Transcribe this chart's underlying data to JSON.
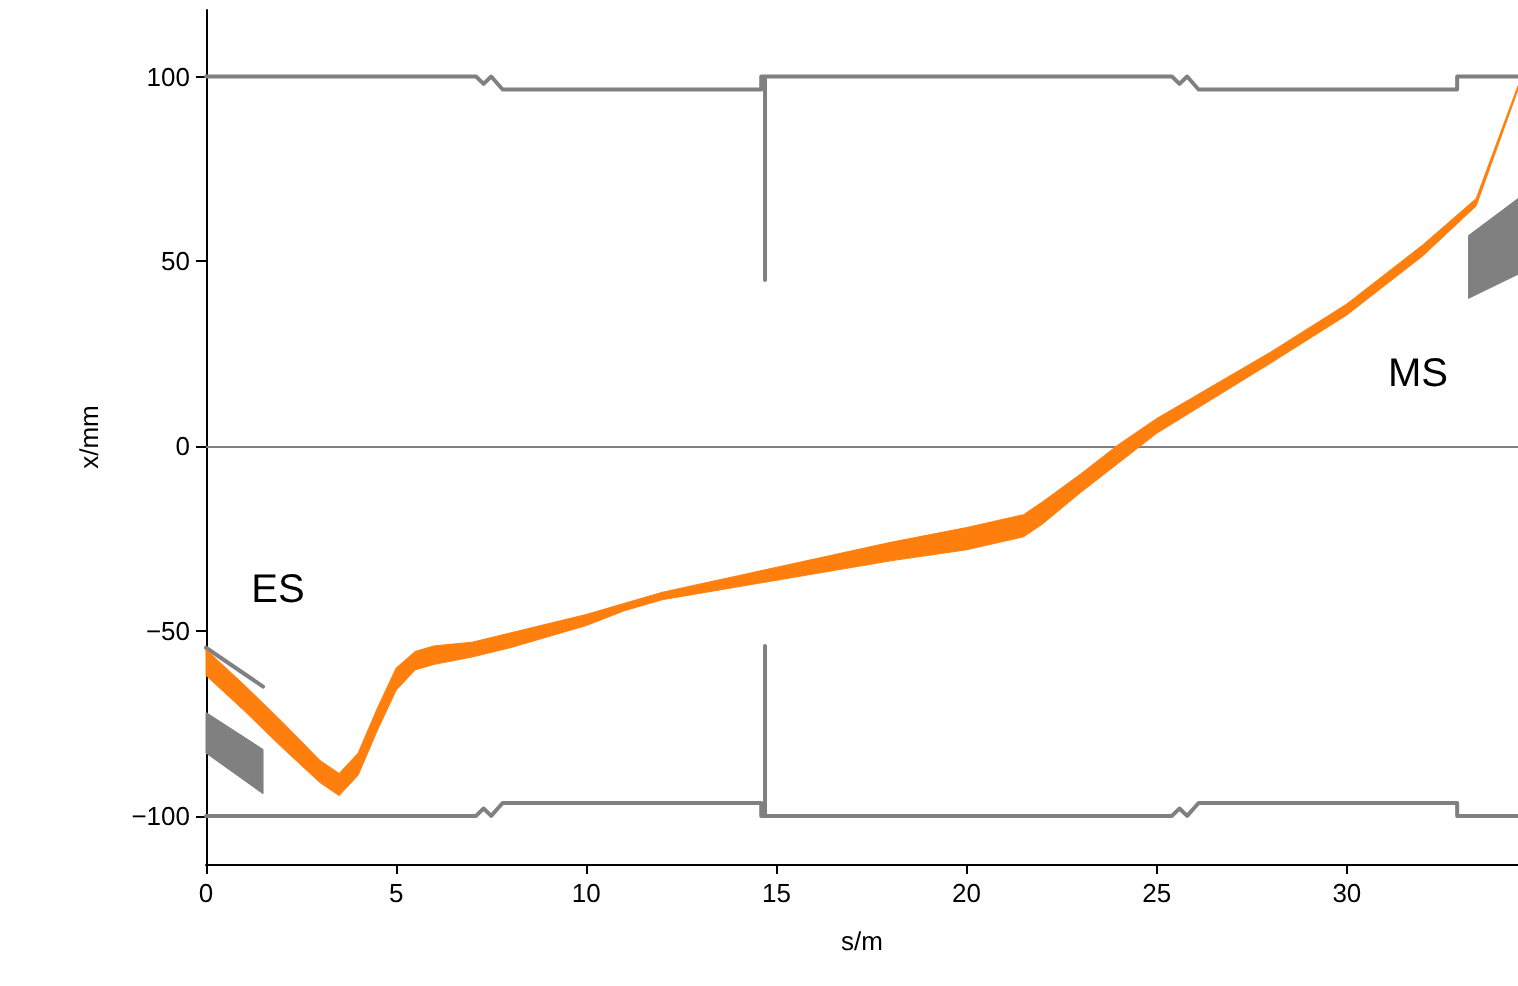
{
  "chart_data": {
    "type": "line",
    "xlabel": "s/m",
    "ylabel": "x/mm",
    "xlim": [
      0,
      34.5
    ],
    "ylim": [
      -113,
      118
    ],
    "xticks": [
      0,
      5,
      10,
      15,
      20,
      25,
      30
    ],
    "yticks": [
      -100,
      -50,
      0,
      50,
      100
    ],
    "grid": false,
    "marker": "none",
    "line_style": "solid",
    "ref_lines": [
      {
        "axis": "y",
        "value": 0,
        "color": "#808080"
      }
    ],
    "annotations": [
      "ES",
      "MS"
    ],
    "series": [
      {
        "color": "#808080",
        "x": [
          0,
          7.1,
          7.3,
          7.5,
          7.8,
          14.6,
          14.6,
          14.7,
          14.7,
          14.7,
          25.4,
          25.6,
          25.8,
          26.1,
          32.9,
          32.9,
          34.5
        ],
        "values": [
          100,
          100,
          98,
          100,
          96.5,
          96.5,
          100,
          100,
          45,
          100,
          100,
          98,
          100,
          96.5,
          96.5,
          100,
          100
        ]
      },
      {
        "color": "#808080",
        "x": [
          0,
          7.1,
          7.3,
          7.5,
          7.8,
          14.6,
          14.6,
          14.7,
          14.7,
          14.7,
          25.4,
          25.6,
          25.8,
          26.1,
          32.9,
          32.9,
          34.5
        ],
        "values": [
          -100,
          -100,
          -98,
          -100,
          -96.5,
          -96.5,
          -100,
          -100,
          -54,
          -100,
          -100,
          -98,
          -100,
          -96.5,
          -96.5,
          -100,
          -100
        ]
      },
      {
        "color": "#808080",
        "x": [
          0,
          1.5
        ],
        "values": [
          -54.5,
          -65
        ]
      },
      {
        "color": "#808080",
        "x": [
          0,
          1.5
        ],
        "values": [
          null,
          null
        ],
        "lower": [
          -83,
          -94
        ],
        "upper": [
          -72,
          -82
        ]
      },
      {
        "color": "#808080",
        "x": [
          33.2,
          34.5
        ],
        "values": [
          null,
          null
        ],
        "lower": [
          40,
          46.5
        ],
        "upper": [
          57,
          67
        ]
      },
      {
        "color": "#ff7f0e",
        "x": [
          0,
          1,
          2,
          3,
          3.5,
          4,
          4.5,
          5,
          5.5,
          6,
          7,
          8,
          10,
          11,
          12,
          14,
          16,
          18,
          20,
          21.5,
          22,
          23,
          24,
          25,
          28,
          30,
          32,
          33.4,
          34.5
        ],
        "values": [
          null,
          null,
          null,
          null,
          null,
          null,
          null,
          null,
          null,
          null,
          null,
          null,
          null,
          null,
          null,
          null,
          null,
          null,
          null,
          null,
          null,
          null,
          null,
          null,
          null,
          null,
          null,
          null,
          null
        ],
        "lower": [
          -62,
          -71.5,
          -81.5,
          -91,
          -94.5,
          -89,
          -77,
          -66,
          -60.5,
          -59,
          -57,
          -54.5,
          -48.5,
          -44.5,
          -41.5,
          -38,
          -34.5,
          -31,
          -28,
          -24.5,
          -21,
          -12.5,
          -4.5,
          3.5,
          22.5,
          35.5,
          51.5,
          65,
          96.5
        ],
        "upper": [
          -55,
          -64.5,
          -74.5,
          -85,
          -88.5,
          -83,
          -71,
          -60,
          -55.5,
          -54,
          -53,
          -50.5,
          -45.5,
          -42.5,
          -39.5,
          -35,
          -30.5,
          -26,
          -22,
          -18.5,
          -15,
          -7.5,
          0.5,
          7.5,
          25.5,
          38.5,
          54.5,
          67,
          97.5
        ]
      }
    ]
  }
}
